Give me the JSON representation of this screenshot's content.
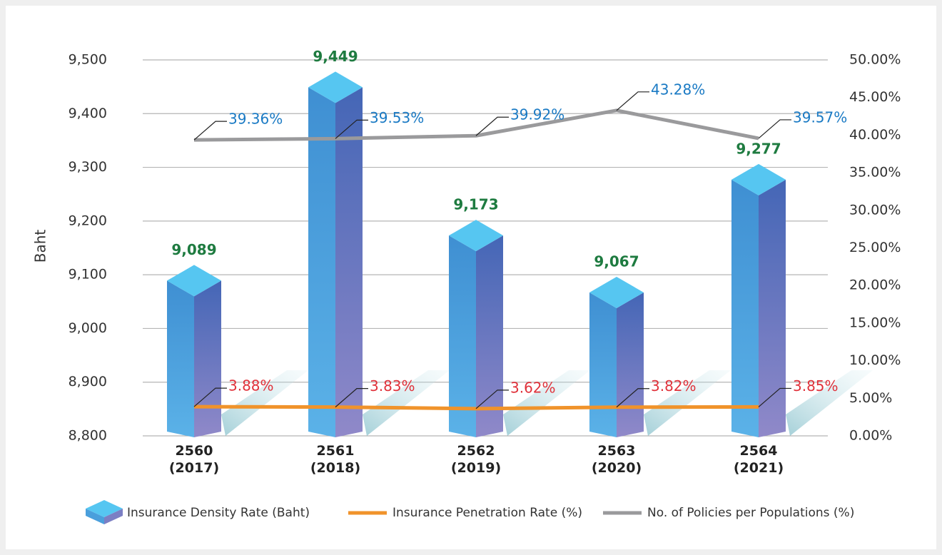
{
  "chart_data": {
    "type": "bar",
    "categories": [
      "2560\n(2017)",
      "2561\n(2018)",
      "2562\n(2019)",
      "2563\n(2020)",
      "2564\n(2021)"
    ],
    "y_label": "Baht",
    "ylim": [
      8800,
      9500
    ],
    "yticks": [
      {
        "value": 8800,
        "label": "8,800"
      },
      {
        "value": 8900,
        "label": "8,900"
      },
      {
        "value": 9000,
        "label": "9,000"
      },
      {
        "value": 9100,
        "label": "9,100"
      },
      {
        "value": 9200,
        "label": "9,200"
      },
      {
        "value": 9300,
        "label": "9,300"
      },
      {
        "value": 9400,
        "label": "9,400"
      },
      {
        "value": 9500,
        "label": "9,500"
      }
    ],
    "y2lim": [
      0,
      50
    ],
    "y2ticks": [
      {
        "value": 0,
        "label": "0.00%"
      },
      {
        "value": 5,
        "label": "5.00%"
      },
      {
        "value": 10,
        "label": "10.00%"
      },
      {
        "value": 15,
        "label": "15.00%"
      },
      {
        "value": 20,
        "label": "20.00%"
      },
      {
        "value": 25,
        "label": "25.00%"
      },
      {
        "value": 30,
        "label": "30.00%"
      },
      {
        "value": 35,
        "label": "35.00%"
      },
      {
        "value": 40,
        "label": "40.00%"
      },
      {
        "value": 45,
        "label": "45.00%"
      },
      {
        "value": 50,
        "label": "50.00%"
      }
    ],
    "grid": true,
    "series": [
      {
        "name": "Insurance Density Rate (Baht)",
        "type": "bar",
        "color": "#4a9fdc",
        "values": [
          9089,
          9449,
          9173,
          9067,
          9277
        ],
        "value_labels": [
          "9,089",
          "9,449",
          "9,173",
          "9,067",
          "9,277"
        ],
        "label_color": "#1e7b40"
      },
      {
        "name": "Insurance Penetration Rate (%)",
        "type": "line",
        "axis": "y2",
        "color": "#f0932b",
        "values": [
          3.88,
          3.83,
          3.62,
          3.82,
          3.85
        ],
        "value_labels": [
          "3.88%",
          "3.83%",
          "3.62%",
          "3.82%",
          "3.85%"
        ],
        "label_color": "#e0313a"
      },
      {
        "name": "No. of Policies per Populations (%)",
        "type": "line",
        "axis": "y2",
        "color": "#9a9a9c",
        "values": [
          39.36,
          39.53,
          39.92,
          43.28,
          39.57
        ],
        "value_labels": [
          "39.36%",
          "39.53%",
          "39.92%",
          "43.28%",
          "39.57%"
        ],
        "label_color": "#1a7ac4"
      }
    ]
  }
}
